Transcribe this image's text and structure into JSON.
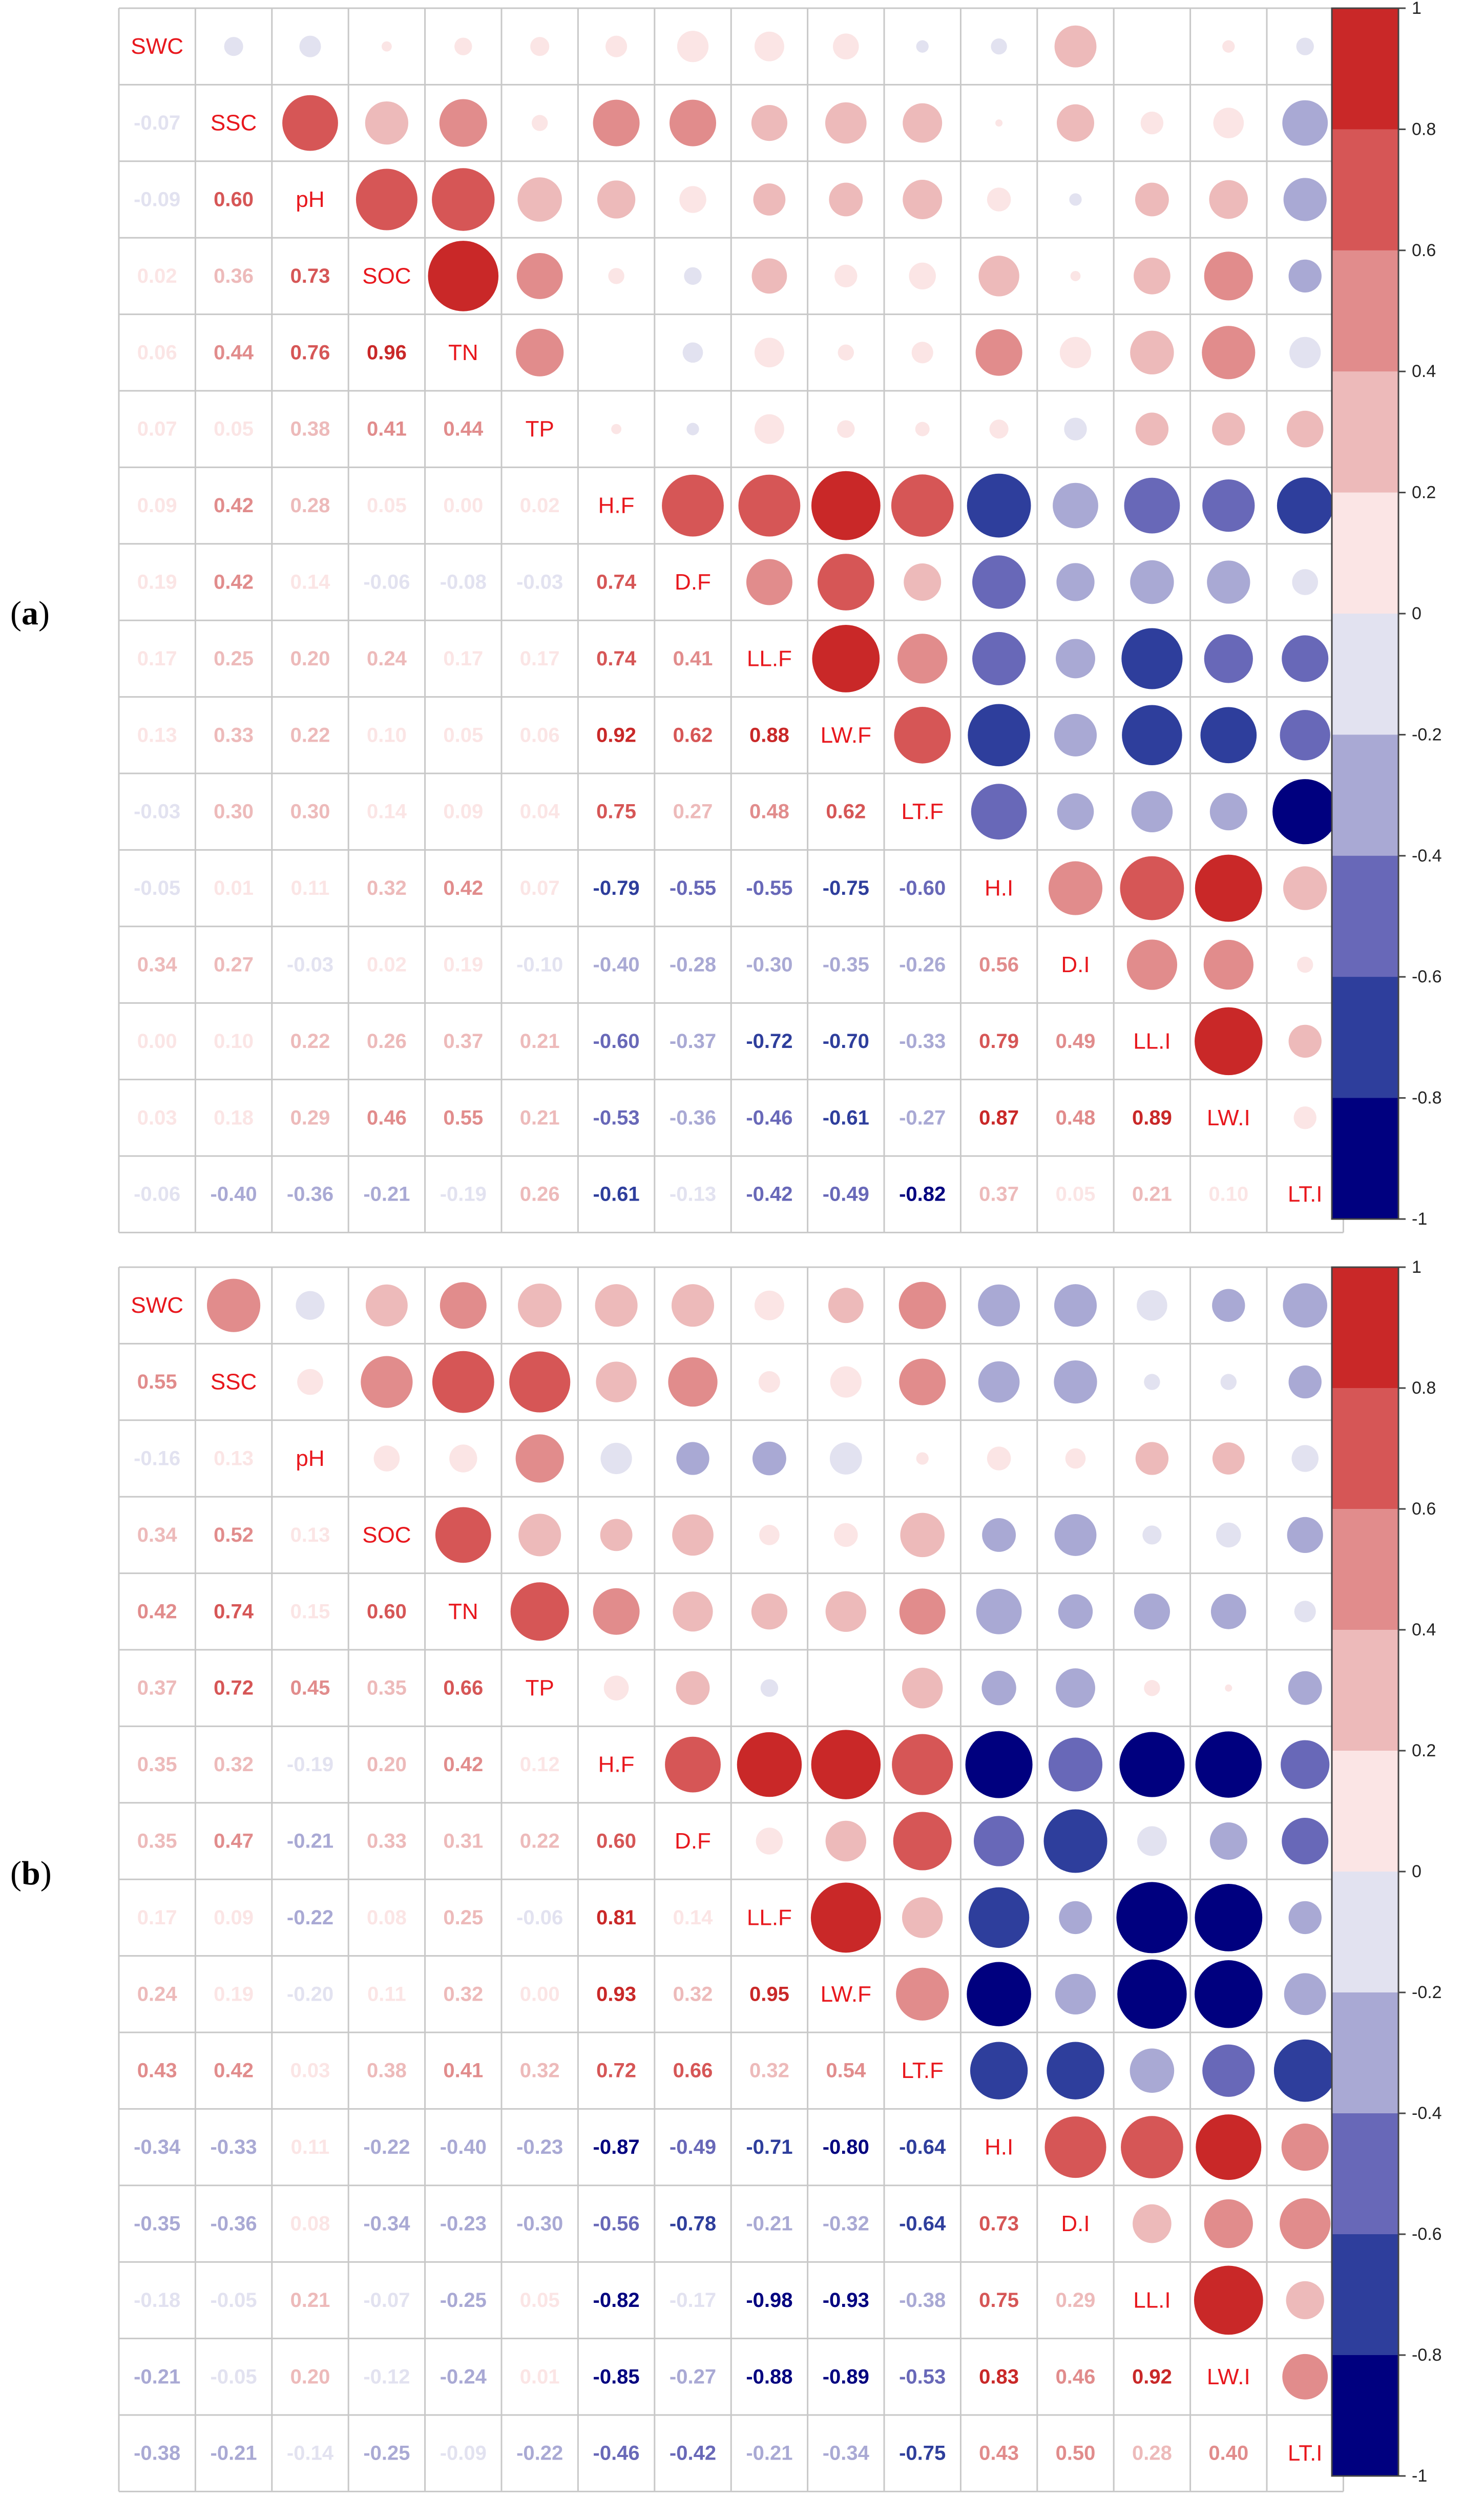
{
  "chart_data": [
    {
      "type": "heatmap",
      "panel_label": "a",
      "variables": [
        "SWC",
        "SSC",
        "pH",
        "SOC",
        "TN",
        "TP",
        "H.F",
        "D.F",
        "LL.F",
        "LW.F",
        "LT.F",
        "H.I",
        "D.I",
        "LL.I",
        "LW.I",
        "LT.I"
      ],
      "lower_values": [
        [],
        [
          -0.07
        ],
        [
          -0.09,
          0.6
        ],
        [
          0.02,
          0.36,
          0.73
        ],
        [
          0.06,
          0.44,
          0.76,
          0.96
        ],
        [
          0.07,
          0.05,
          0.38,
          0.41,
          0.44
        ],
        [
          0.09,
          0.42,
          0.28,
          0.05,
          0.0,
          0.02
        ],
        [
          0.19,
          0.42,
          0.14,
          -0.06,
          -0.08,
          -0.03,
          0.74
        ],
        [
          0.17,
          0.25,
          0.2,
          0.24,
          0.17,
          0.17,
          0.74,
          0.41
        ],
        [
          0.13,
          0.33,
          0.22,
          0.1,
          0.05,
          0.06,
          0.92,
          0.62,
          0.88
        ],
        [
          -0.03,
          0.3,
          0.3,
          0.14,
          0.09,
          0.04,
          0.75,
          0.27,
          0.48,
          0.62
        ],
        [
          -0.05,
          0.01,
          0.11,
          0.32,
          0.42,
          0.07,
          -0.79,
          -0.55,
          -0.55,
          -0.75,
          -0.6
        ],
        [
          0.34,
          0.27,
          -0.03,
          0.02,
          0.19,
          -0.1,
          -0.4,
          -0.28,
          -0.3,
          -0.35,
          -0.26,
          0.56
        ],
        [
          0.0,
          0.1,
          0.22,
          0.26,
          0.37,
          0.21,
          -0.6,
          -0.37,
          -0.72,
          -0.7,
          -0.33,
          0.79,
          0.49
        ],
        [
          0.03,
          0.18,
          0.29,
          0.46,
          0.55,
          0.21,
          -0.53,
          -0.36,
          -0.46,
          -0.61,
          -0.27,
          0.87,
          0.48,
          0.89
        ],
        [
          -0.06,
          -0.4,
          -0.36,
          -0.21,
          -0.19,
          0.26,
          -0.61,
          -0.13,
          -0.42,
          -0.49,
          -0.82,
          0.37,
          0.05,
          0.21,
          0.1
        ]
      ],
      "colorbar_ticks": [
        "1",
        "0.8",
        "0.6",
        "0.4",
        "0.2",
        "0",
        "-0.2",
        "-0.4",
        "-0.6",
        "-0.8",
        "-1"
      ]
    },
    {
      "type": "heatmap",
      "panel_label": "b",
      "variables": [
        "SWC",
        "SSC",
        "pH",
        "SOC",
        "TN",
        "TP",
        "H.F",
        "D.F",
        "LL.F",
        "LW.F",
        "LT.F",
        "H.I",
        "D.I",
        "LL.I",
        "LW.I",
        "LT.I"
      ],
      "lower_values": [
        [],
        [
          0.55
        ],
        [
          -0.16,
          0.13
        ],
        [
          0.34,
          0.52,
          0.13
        ],
        [
          0.42,
          0.74,
          0.15,
          0.6
        ],
        [
          0.37,
          0.72,
          0.45,
          0.35,
          0.66
        ],
        [
          0.35,
          0.32,
          -0.19,
          0.2,
          0.42,
          0.12
        ],
        [
          0.35,
          0.47,
          -0.21,
          0.33,
          0.31,
          0.22,
          0.6
        ],
        [
          0.17,
          0.09,
          -0.22,
          0.08,
          0.25,
          -0.06,
          0.81,
          0.14
        ],
        [
          0.24,
          0.19,
          -0.2,
          0.11,
          0.32,
          0.0,
          0.93,
          0.32,
          0.95
        ],
        [
          0.43,
          0.42,
          0.03,
          0.38,
          0.41,
          0.32,
          0.72,
          0.66,
          0.32,
          0.54
        ],
        [
          -0.34,
          -0.33,
          0.11,
          -0.22,
          -0.4,
          -0.23,
          -0.87,
          -0.49,
          -0.71,
          -0.8,
          -0.64
        ],
        [
          -0.35,
          -0.36,
          0.08,
          -0.34,
          -0.23,
          -0.3,
          -0.56,
          -0.78,
          -0.21,
          -0.32,
          -0.64,
          0.73
        ],
        [
          -0.18,
          -0.05,
          0.21,
          -0.07,
          -0.25,
          0.05,
          -0.82,
          -0.17,
          -0.98,
          -0.93,
          -0.38,
          0.75,
          0.29
        ],
        [
          -0.21,
          -0.05,
          0.2,
          -0.12,
          -0.24,
          0.01,
          -0.85,
          -0.27,
          -0.88,
          -0.89,
          -0.53,
          0.83,
          0.46,
          0.92
        ],
        [
          -0.38,
          -0.21,
          -0.14,
          -0.25,
          -0.09,
          -0.22,
          -0.46,
          -0.42,
          -0.21,
          -0.34,
          -0.75,
          0.43,
          0.5,
          0.28,
          0.4
        ]
      ],
      "colorbar_ticks": [
        "1",
        "0.8",
        "0.6",
        "0.4",
        "0.2",
        "0",
        "-0.2",
        "-0.4",
        "-0.6",
        "-0.8",
        "-1"
      ]
    }
  ]
}
